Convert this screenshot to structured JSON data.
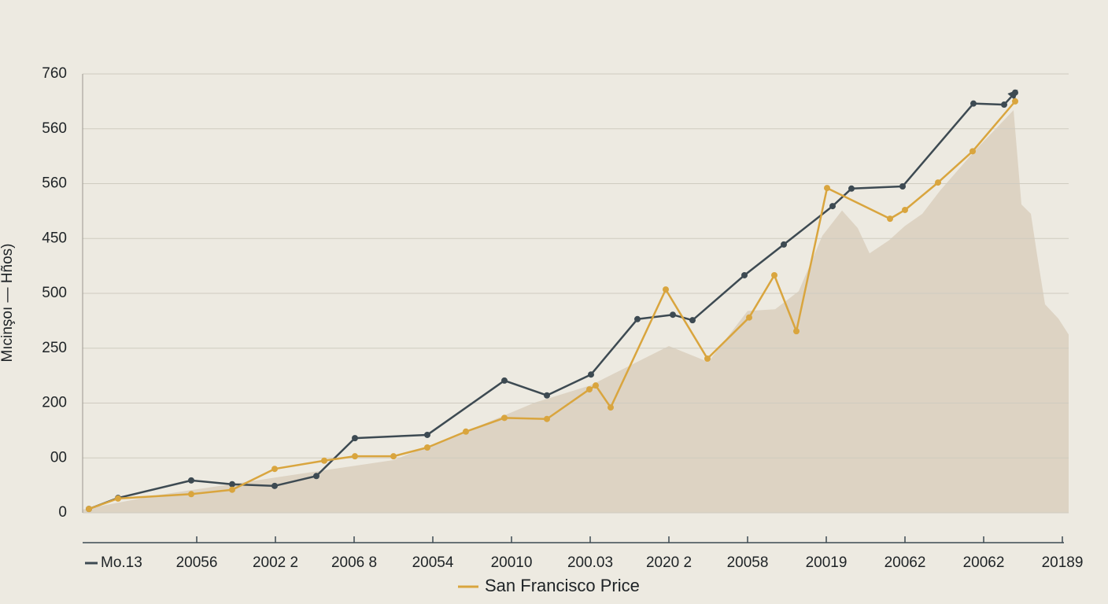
{
  "chart_data": {
    "type": "line",
    "y_label": "Mıcinşoı — Hños)",
    "xlim": [
      -0.45,
      12.08
    ],
    "xticks": [
      {
        "value": 1,
        "label": "20056"
      },
      {
        "value": 2,
        "label": "2002 2"
      },
      {
        "value": 3,
        "label": "2006 8"
      },
      {
        "value": 4,
        "label": "20054"
      },
      {
        "value": 5,
        "label": "20010"
      },
      {
        "value": 6,
        "label": "200.03"
      },
      {
        "value": 7,
        "label": "2020 2"
      },
      {
        "value": 8,
        "label": "20058"
      },
      {
        "value": 9,
        "label": "20019"
      },
      {
        "value": 10,
        "label": "20062"
      },
      {
        "value": 11,
        "label": "20062"
      },
      {
        "value": 12,
        "label": "20189"
      }
    ],
    "ylim": [
      0,
      800
    ],
    "yticks": [
      0,
      {
        "value": 100,
        "label": "00"
      },
      200,
      {
        "value": 300,
        "label": "250"
      },
      {
        "value": 400,
        "label": "500"
      },
      {
        "value": 500,
        "label": "450"
      },
      {
        "value": 600,
        "label": "560"
      },
      {
        "value": 700,
        "label": "560"
      },
      {
        "value": 800,
        "label": "760"
      }
    ],
    "grid": true,
    "area": {
      "color": "#ddd3c3",
      "x": [
        -0.45,
        0.5,
        2.5,
        3.5,
        4.5,
        5.3,
        6.0,
        7.0,
        7.5,
        8.0,
        8.35,
        8.65,
        8.95,
        9.2,
        9.4,
        9.55,
        9.8,
        10.0,
        10.22,
        10.45,
        10.9,
        11.38,
        11.48,
        11.6,
        11.68,
        11.78,
        11.95,
        12.08
      ],
      "values": [
        6,
        32,
        75,
        96,
        153,
        201,
        232,
        304,
        275,
        368,
        371,
        404,
        505,
        551,
        519,
        473,
        497,
        523,
        545,
        588,
        662,
        734,
        562,
        545,
        469,
        380,
        354,
        325
      ]
    },
    "series": [
      {
        "name": "Mo.13",
        "color": "#3d4a52",
        "x": [
          -0.37,
          0,
          0.93,
          1.45,
          1.99,
          2.52,
          3.01,
          3.93,
          4.91,
          5.45,
          6.01,
          6.6,
          7.05,
          7.3,
          7.96,
          8.46,
          9.08,
          9.32,
          9.97,
          10.87,
          11.26,
          11.4
        ],
        "values": [
          7,
          27,
          59,
          52,
          49,
          67,
          136,
          142,
          241,
          214,
          252,
          353,
          361,
          351,
          433,
          489,
          559,
          591,
          595,
          746,
          744,
          766
        ]
      },
      {
        "name": "San Francisco Price",
        "color": "#d9a53e",
        "x": [
          -0.37,
          0,
          0.93,
          1.45,
          1.99,
          2.62,
          3.01,
          3.5,
          3.93,
          4.42,
          4.91,
          5.45,
          5.99,
          6.07,
          6.26,
          6.96,
          7.49,
          8.02,
          8.34,
          8.62,
          9.01,
          9.81,
          10.0,
          10.42,
          10.86,
          11.4
        ],
        "values": [
          7,
          26,
          34,
          42,
          80,
          95,
          103,
          103,
          119,
          148,
          173,
          171,
          225,
          232,
          192,
          407,
          281,
          356,
          433,
          331,
          592,
          536,
          552,
          602,
          659,
          750
        ]
      }
    ]
  }
}
